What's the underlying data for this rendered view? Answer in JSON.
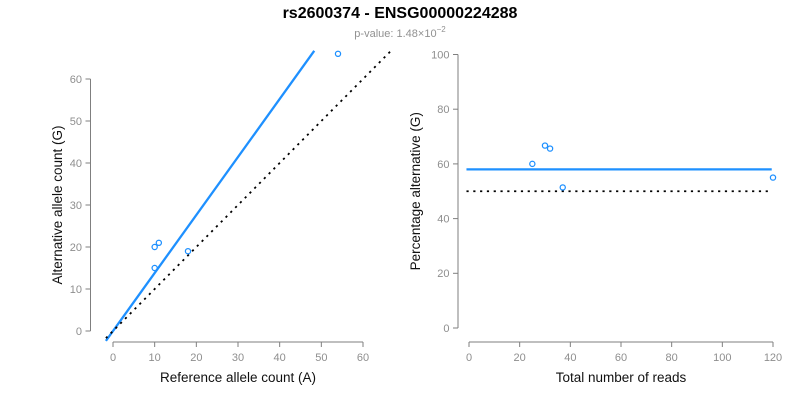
{
  "header": {
    "title": "rs2600374 - ENSG00000224288",
    "pvalue_prefix": "p-value: 1.48×10",
    "pvalue_exponent": "−2"
  },
  "colors": {
    "accent_blue": "#1E90FF",
    "axis_gray": "#7f7f7f",
    "tick_label_gray": "#8e8e8e",
    "dotted_line_black": "#000000",
    "axis_title_black": "#111111",
    "title_black": "#000000",
    "subtitle_gray": "#919191"
  },
  "chart_data": [
    {
      "id": "left",
      "type": "scatter",
      "xlabel": "Reference allele count (A)",
      "ylabel": "Alternative allele count (G)",
      "xticks": [
        0,
        10,
        20,
        30,
        40,
        50,
        60
      ],
      "yticks": [
        0,
        10,
        20,
        30,
        40,
        50,
        60
      ],
      "xlim": [
        0,
        66
      ],
      "ylim": [
        0,
        66
      ],
      "grid": false,
      "legend": "none",
      "points": [
        [
          10,
          20
        ],
        [
          11,
          21
        ],
        [
          10,
          15
        ],
        [
          18,
          19
        ],
        [
          54,
          66
        ]
      ],
      "lines": [
        {
          "name": "fit-line",
          "style": "solid",
          "color": "#1E90FF",
          "slope": 1.381,
          "intercept": 0,
          "x_span": [
            -1.7,
            48.3
          ]
        },
        {
          "name": "identity-line",
          "style": "dotted",
          "color": "#000000",
          "slope": 1,
          "intercept": 0,
          "x_span": [
            -1.7,
            66.5
          ]
        }
      ]
    },
    {
      "id": "right",
      "type": "scatter",
      "xlabel": "Total number of reads",
      "ylabel": "Percentage alternative (G)",
      "xticks": [
        0,
        20,
        40,
        60,
        80,
        100,
        120
      ],
      "yticks": [
        0,
        20,
        40,
        60,
        80,
        100
      ],
      "xlim": [
        0,
        120
      ],
      "ylim": [
        0,
        100
      ],
      "grid": false,
      "legend": "none",
      "points": [
        [
          30,
          66.7
        ],
        [
          32,
          65.6
        ],
        [
          25,
          60
        ],
        [
          37,
          51.4
        ],
        [
          120,
          55
        ]
      ],
      "lines": [
        {
          "name": "fit-line",
          "style": "solid",
          "color": "#1E90FF",
          "slope": 0,
          "intercept": 58,
          "x_span": [
            -1,
            119.5
          ]
        },
        {
          "name": "identity-line",
          "style": "dotted",
          "color": "#000000",
          "slope": 0,
          "intercept": 50,
          "x_span": [
            -1,
            118
          ]
        }
      ]
    }
  ]
}
